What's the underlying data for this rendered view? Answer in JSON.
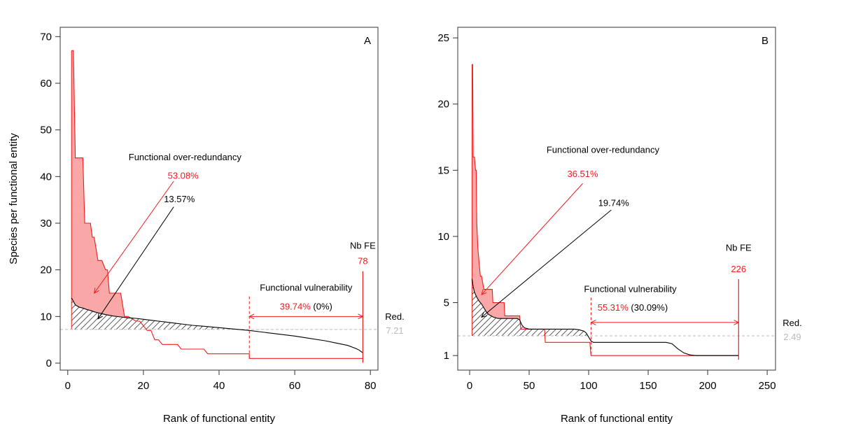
{
  "figure": {
    "ylabel": "Species per functional entity",
    "xlabel": "Rank of functional entity",
    "colors": {
      "red": "#ee1c1c",
      "red_fill": "#f9a7a7",
      "grey": "#bbbbbb",
      "black": "#000000"
    }
  },
  "chart_data": [
    {
      "type": "line",
      "panel_label": "A",
      "xlim": [
        -2,
        82
      ],
      "ylim": [
        -1.5,
        72
      ],
      "xticks": [
        0,
        20,
        40,
        60,
        80
      ],
      "yticks": [
        0,
        10,
        20,
        30,
        40,
        50,
        60,
        70
      ],
      "red_series": {
        "x": [
          1,
          1.5,
          2,
          2.5,
          3,
          4,
          4.5,
          5,
          6,
          6.5,
          7,
          8,
          8.5,
          9,
          10,
          10.5,
          11,
          12,
          12.5,
          13,
          14,
          15,
          15.5,
          16,
          18,
          19,
          20,
          21,
          22,
          23,
          24,
          25,
          26,
          28,
          29,
          30,
          32,
          34,
          36,
          37,
          38,
          40,
          44,
          48,
          48,
          78
        ],
        "y": [
          67,
          67,
          44,
          44,
          44,
          44,
          30,
          30,
          30,
          27,
          27,
          22,
          22,
          22,
          20,
          20,
          15,
          15,
          15,
          15,
          15,
          10,
          10,
          10,
          9,
          9,
          8,
          7,
          7,
          5,
          5,
          4,
          4,
          4,
          4,
          3,
          3,
          3,
          3,
          2,
          2,
          2,
          2,
          2,
          1,
          1
        ]
      },
      "black_series": {
        "x": [
          1,
          2,
          3,
          4,
          5,
          6,
          7,
          8,
          9,
          10,
          12,
          14,
          16,
          18,
          20,
          22,
          24,
          26,
          28,
          30,
          33,
          36,
          40,
          44,
          48,
          52,
          56,
          60,
          64,
          68,
          71,
          74,
          76,
          77,
          78
        ],
        "y": [
          14,
          12.5,
          12,
          11.8,
          11.5,
          11.3,
          11,
          10.8,
          10.6,
          10.4,
          10.1,
          9.9,
          9.7,
          9.6,
          9.4,
          9.2,
          9,
          8.8,
          8.6,
          8.4,
          8.1,
          7.9,
          7.6,
          7.3,
          7,
          6.6,
          6.2,
          5.8,
          5.3,
          4.8,
          4.3,
          3.8,
          3.2,
          2.8,
          2.2
        ]
      },
      "redundancy_threshold": 7.21,
      "redundancy_label": "Red.",
      "redundancy_value": "7.21",
      "over_redundancy_label": "Functional over-redundancy",
      "over_redundancy_red_pct": "53.08%",
      "over_redundancy_black_pct": "13.57%",
      "vulnerability_label": "Functional vulnerability",
      "vulnerability_red_pct": "39.74%",
      "vulnerability_black_pct": "(0%)",
      "vulnerability_start": 48,
      "nbfe_label": "Nb FE",
      "nbfe_value": "78",
      "nbfe": 78,
      "annot": {
        "title_pos": [
          31,
          43.5
        ],
        "red_pct_pos": [
          30.5,
          39.5
        ],
        "black_pct_pos": [
          29.5,
          34.5
        ],
        "red_arrow": [
          [
            28,
            39
          ],
          [
            7,
            15
          ]
        ],
        "black_arrow": [
          [
            28,
            33.5
          ],
          [
            8,
            9.5
          ]
        ],
        "vuln_title_pos": [
          63,
          15.5
        ],
        "vuln_pct_pos": [
          63,
          11.5
        ],
        "vuln_arrow_y": 10,
        "nbfe_label_pos": [
          78,
          24.5
        ],
        "nbfe_value_pos": [
          78,
          21.2
        ]
      }
    },
    {
      "type": "line",
      "panel_label": "B",
      "xlim": [
        -10,
        257
      ],
      "ylim": [
        -0.1,
        25.8
      ],
      "xticks": [
        0,
        50,
        100,
        150,
        200,
        250
      ],
      "yticks": [
        1,
        5,
        10,
        15,
        20,
        25
      ],
      "red_series": {
        "x": [
          2,
          2.5,
          3,
          4,
          5,
          5.5,
          6,
          7,
          8,
          9,
          10,
          12,
          13,
          15,
          17,
          19,
          19.5,
          24,
          24.5,
          29,
          29.5,
          33,
          34,
          40,
          42,
          43,
          44,
          63,
          63.5,
          101,
          102,
          226
        ],
        "y": [
          23,
          23,
          16,
          16,
          15,
          15,
          11,
          9,
          8,
          7,
          7,
          6,
          6,
          6,
          6,
          6,
          5,
          5,
          5,
          5,
          4,
          4,
          4,
          4,
          4,
          3,
          3,
          3,
          2,
          2,
          1,
          1
        ]
      },
      "black_series": {
        "x": [
          2,
          3,
          4,
          5,
          6,
          8,
          10,
          12,
          14,
          16,
          18,
          20,
          24,
          30,
          36,
          40,
          42,
          44,
          46,
          50,
          60,
          70,
          80,
          88,
          92,
          96,
          98,
          100,
          102,
          104,
          110,
          130,
          150,
          165,
          170,
          175,
          180,
          185,
          190,
          200,
          226
        ],
        "y": [
          6.8,
          6.2,
          5.8,
          5.6,
          5.4,
          5.1,
          4.9,
          4.6,
          4.3,
          4.1,
          4,
          3.9,
          3.8,
          3.8,
          3.8,
          3.8,
          3.7,
          3.3,
          3.1,
          3,
          3,
          3,
          3,
          3,
          2.95,
          2.85,
          2.7,
          2.4,
          2.1,
          2,
          2,
          2,
          2,
          2,
          1.9,
          1.5,
          1.2,
          1.05,
          1,
          1,
          1
        ]
      },
      "redundancy_threshold": 2.49,
      "redundancy_label": "Red.",
      "redundancy_value": "2.49",
      "over_redundancy_label": "Functional over-redundancy",
      "over_redundancy_red_pct": "36.51%",
      "over_redundancy_black_pct": "19.74%",
      "vulnerability_label": "Functional vulnerability",
      "vulnerability_red_pct": "55.31%",
      "vulnerability_black_pct": "(30.09%)",
      "vulnerability_start": 102,
      "nbfe_label": "Nb FE",
      "nbfe_value": "226",
      "nbfe": 226,
      "annot": {
        "title_pos": [
          112,
          16.3
        ],
        "red_pct_pos": [
          95,
          14.5
        ],
        "black_pct_pos": [
          121,
          12.3
        ],
        "red_arrow": [
          [
            95,
            14
          ],
          [
            10,
            5.6
          ]
        ],
        "black_arrow": [
          [
            119,
            12
          ],
          [
            10,
            3.9
          ]
        ],
        "vuln_title_pos": [
          135,
          5.8
        ],
        "vuln_pct_pos": [
          137,
          4.4
        ],
        "vuln_arrow_y": 3.5,
        "nbfe_label_pos": [
          226,
          8.9
        ],
        "nbfe_value_pos": [
          226,
          7.3
        ]
      }
    }
  ]
}
